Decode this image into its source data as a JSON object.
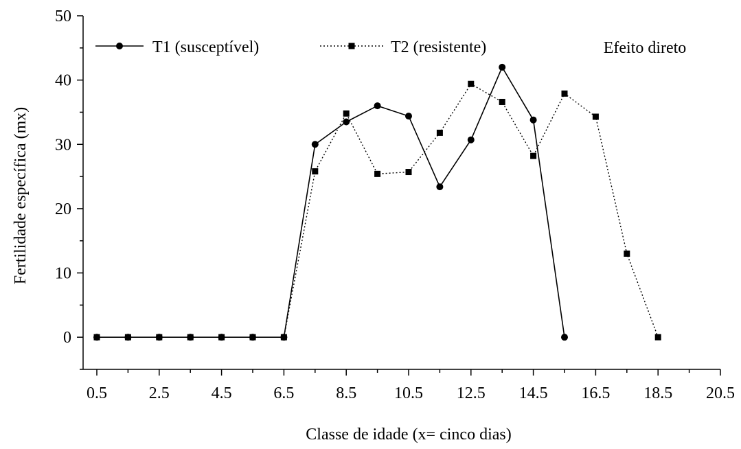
{
  "chart_data": {
    "type": "line",
    "title": "",
    "xlabel": "Classe de idade (x= cinco dias)",
    "ylabel": "Fertilidade específica (mx)",
    "xlim": [
      0.5,
      20.5
    ],
    "ylim": [
      -5,
      50
    ],
    "x_ticks": [
      0.5,
      2.5,
      4.5,
      6.5,
      8.5,
      10.5,
      12.5,
      14.5,
      16.5,
      18.5,
      20.5
    ],
    "x_tick_labels": [
      "0.5",
      "2.5",
      "4.5",
      "6.5",
      "8.5",
      "10.5",
      "12.5",
      "14.5",
      "16.5",
      "18.5",
      "20.5"
    ],
    "y_ticks": [
      0,
      10,
      20,
      30,
      40,
      50
    ],
    "y_tick_labels": [
      "0",
      "10",
      "20",
      "30",
      "40",
      "50"
    ],
    "grid": false,
    "legend_position": "top",
    "annotation": "Efeito direto",
    "series": [
      {
        "name": "T1 (susceptível)",
        "line_style": "solid",
        "marker": "circle",
        "color": "#000000",
        "x": [
          0.5,
          1.5,
          2.5,
          3.5,
          4.5,
          5.5,
          6.5,
          7.5,
          8.5,
          9.5,
          10.5,
          11.5,
          12.5,
          13.5,
          14.5,
          15.5
        ],
        "y": [
          0,
          0,
          0,
          0,
          0,
          0,
          0,
          30,
          33.5,
          36,
          34.4,
          23.4,
          30.7,
          42,
          33.8,
          0
        ]
      },
      {
        "name": "T2 (resistente)",
        "line_style": "dotted",
        "marker": "square",
        "color": "#000000",
        "x": [
          0.5,
          1.5,
          2.5,
          3.5,
          4.5,
          5.5,
          6.5,
          7.5,
          8.5,
          9.5,
          10.5,
          11.5,
          12.5,
          13.5,
          14.5,
          15.5,
          16.5,
          17.5,
          18.5
        ],
        "y": [
          0,
          0,
          0,
          0,
          0,
          0,
          0,
          25.8,
          34.8,
          25.4,
          25.7,
          31.8,
          39.4,
          36.6,
          28.2,
          37.9,
          34.3,
          13,
          0
        ]
      }
    ]
  }
}
